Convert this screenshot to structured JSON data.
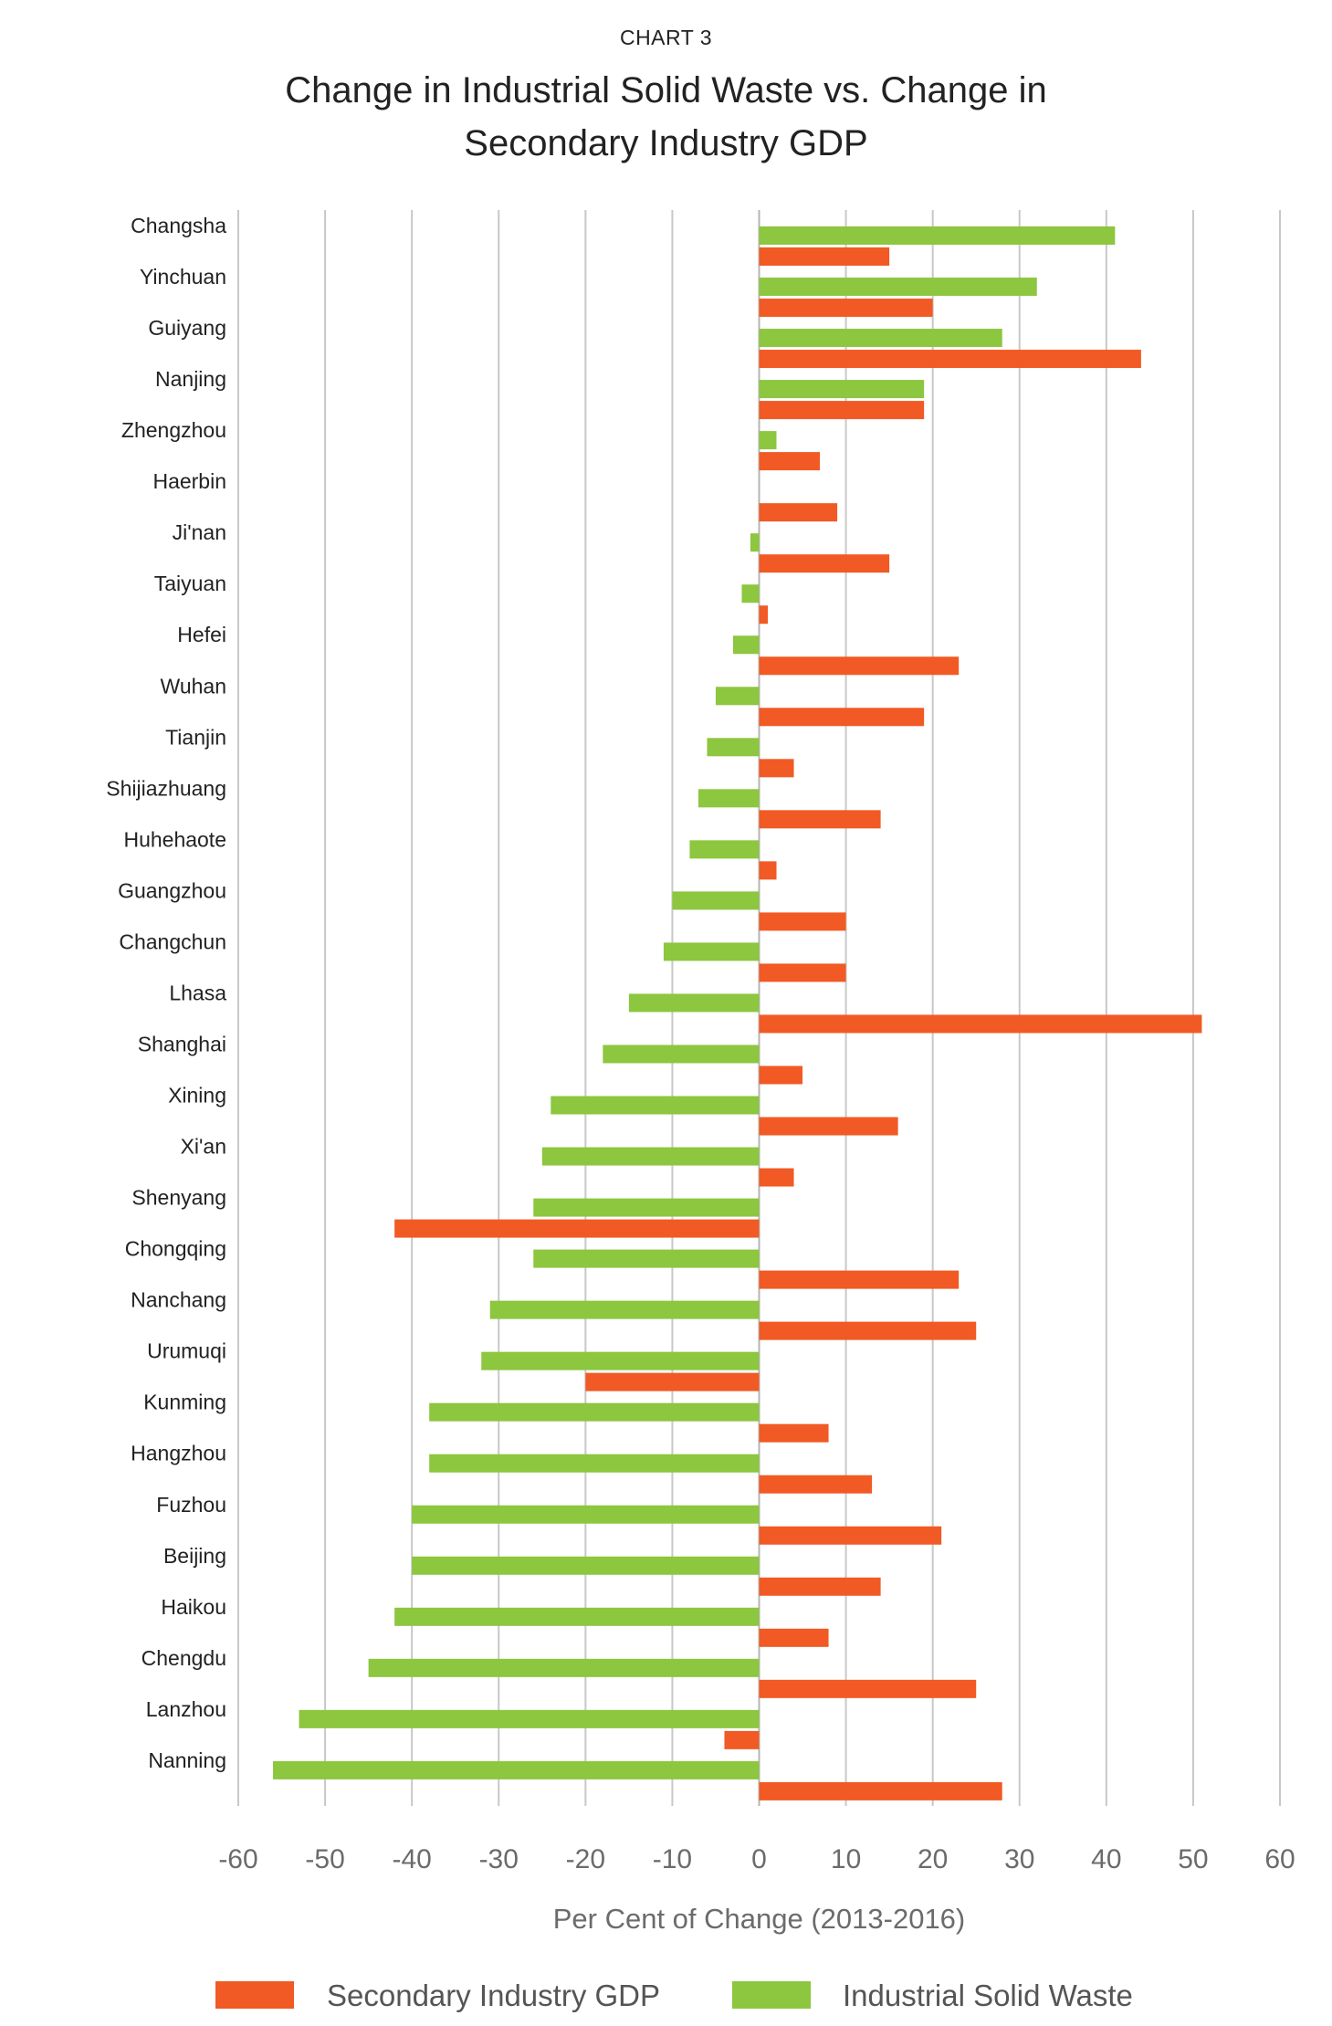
{
  "chart_data": {
    "type": "bar",
    "orientation": "horizontal",
    "label": "CHART 3",
    "title": "Change in Industrial Solid Waste vs. Change in Secondary Industry GDP",
    "title_lines": [
      "Change in Industrial Solid Waste vs. Change in",
      "Secondary Industry GDP"
    ],
    "xlabel": "Per Cent of Change (2013-2016)",
    "ylabel": "",
    "xlim": [
      -60,
      60
    ],
    "xticks": [
      "-60",
      "-50",
      "-40",
      "-30",
      "-20",
      "-10",
      "0",
      "10",
      "20",
      "30",
      "40",
      "50",
      "60"
    ],
    "grid": true,
    "legend_position": "bottom",
    "categories": [
      "Changsha",
      "Yinchuan",
      "Guiyang",
      "Nanjing",
      "Zhengzhou",
      "Haerbin",
      "Ji'nan",
      "Taiyuan",
      "Hefei",
      "Wuhan",
      "Tianjin",
      "Shijiazhuang",
      "Huhehaote",
      "Guangzhou",
      "Changchun",
      "Lhasa",
      "Shanghai",
      "Xining",
      "Xi'an",
      "Shenyang",
      "Chongqing",
      "Nanchang",
      "Urumuqi",
      "Kunming",
      "Hangzhou",
      "Fuzhou",
      "Beijing",
      "Haikou",
      "Chengdu",
      "Lanzhou",
      "Nanning"
    ],
    "series": [
      {
        "name": "Industrial Solid Waste",
        "color": "#8dc63f",
        "values": [
          41,
          32,
          28,
          19,
          2,
          0,
          -1,
          -2,
          -3,
          -5,
          -6,
          -7,
          -8,
          -10,
          -11,
          -15,
          -18,
          -24,
          -25,
          -26,
          -26,
          -31,
          -32,
          -38,
          -38,
          -40,
          -40,
          -42,
          -45,
          -53,
          -56
        ]
      },
      {
        "name": "Secondary Industry GDP",
        "color": "#f15a24",
        "values": [
          15,
          20,
          44,
          19,
          7,
          9,
          15,
          1,
          23,
          19,
          4,
          14,
          2,
          10,
          10,
          51,
          5,
          16,
          4,
          -42,
          23,
          25,
          -20,
          8,
          13,
          21,
          14,
          8,
          25,
          -4,
          28
        ]
      }
    ],
    "legend": [
      {
        "name": "Secondary Industry GDP",
        "color": "#f15a24"
      },
      {
        "name": "Industrial Solid Waste",
        "color": "#8dc63f"
      }
    ]
  }
}
